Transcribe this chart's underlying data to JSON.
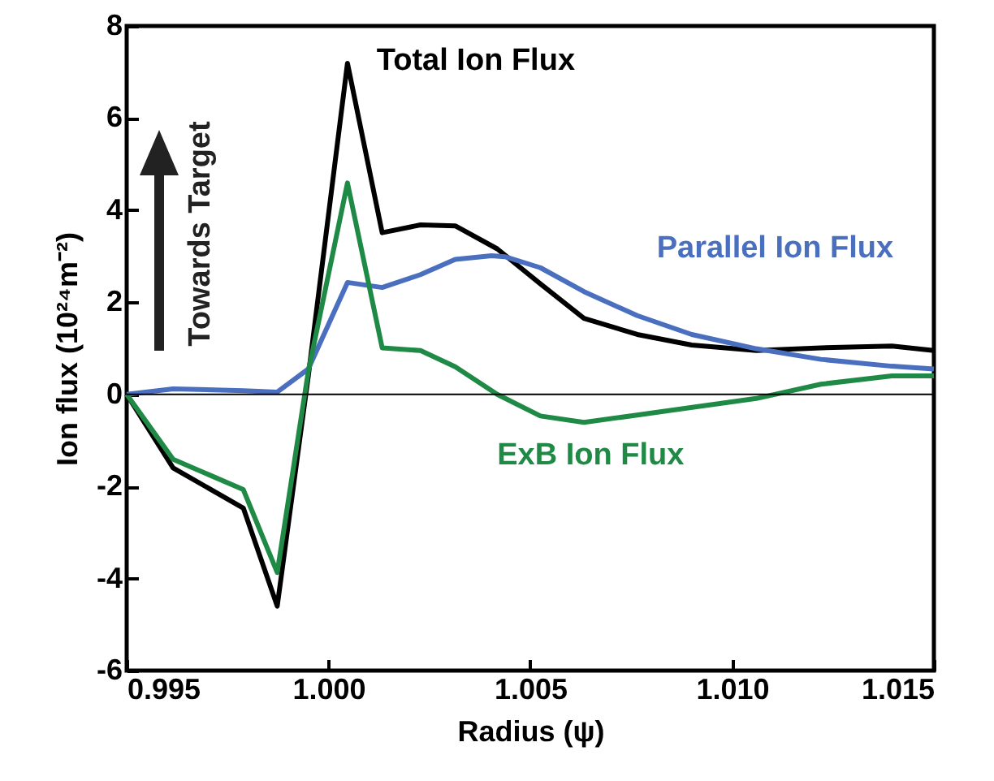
{
  "chart_data": {
    "type": "line",
    "xlabel": "Radius (ψ)",
    "ylabel": "Ion flux (10²⁴m⁻²)",
    "xlim": [
      0.995,
      1.015
    ],
    "xticks": [
      {
        "value": 0.995,
        "label": "0.995"
      },
      {
        "value": 1.0,
        "label": "1.000"
      },
      {
        "value": 1.005,
        "label": "1.005"
      },
      {
        "value": 1.01,
        "label": "1.010"
      },
      {
        "value": 1.015,
        "label": "1.015"
      }
    ],
    "ylim": [
      -6,
      8
    ],
    "yticks": [
      -6,
      -4,
      -2,
      0,
      2,
      4,
      6,
      8
    ],
    "grid": false,
    "marker": "none",
    "line_style": "solid",
    "ref_lines": [
      {
        "axis": "y",
        "value": 0,
        "color": "#000000"
      }
    ],
    "annotations": [
      "Towards Target"
    ],
    "series": [
      {
        "name": "Total Ion Flux",
        "color": "#000000",
        "x": [
          0.995,
          0.99615,
          0.99789,
          0.99873,
          0.9995,
          1.00047,
          1.00133,
          1.00228,
          1.00314,
          1.00418,
          1.00525,
          1.00633,
          1.00765,
          1.009,
          1.0106,
          1.0122,
          1.01396,
          1.015
        ],
        "values": [
          0,
          -1.6,
          -2.47,
          -4.6,
          0.4,
          7.19,
          3.51,
          3.68,
          3.66,
          3.16,
          2.4,
          1.65,
          1.3,
          1.07,
          0.95,
          1.01,
          1.05,
          0.95
        ]
      },
      {
        "name": "Parallel Ion Flux",
        "color": "#4a6fbf",
        "x": [
          0.995,
          0.99615,
          0.99789,
          0.99873,
          0.9995,
          1.00047,
          1.00133,
          1.00228,
          1.00314,
          1.00404,
          1.00437,
          1.00525,
          1.00633,
          1.00765,
          1.009,
          1.0106,
          1.0122,
          1.01396,
          1.015
        ],
        "values": [
          0,
          0.12,
          0.08,
          0.05,
          0.55,
          2.43,
          2.32,
          2.6,
          2.93,
          3.01,
          2.99,
          2.75,
          2.23,
          1.71,
          1.3,
          0.99,
          0.76,
          0.61,
          0.55
        ]
      },
      {
        "name": "ExB Ion Flux",
        "color": "#1f8a45",
        "x": [
          0.995,
          0.99615,
          0.99789,
          0.99873,
          0.9995,
          1.00047,
          1.00133,
          1.00228,
          1.00314,
          1.00418,
          1.00525,
          1.00633,
          1.0106,
          1.0122,
          1.01396,
          1.015
        ],
        "values": [
          0,
          -1.41,
          -2.07,
          -3.87,
          0.5,
          4.59,
          1.01,
          0.95,
          0.6,
          0,
          -0.47,
          -0.61,
          -0.09,
          0.22,
          0.4,
          0.4
        ]
      }
    ]
  }
}
